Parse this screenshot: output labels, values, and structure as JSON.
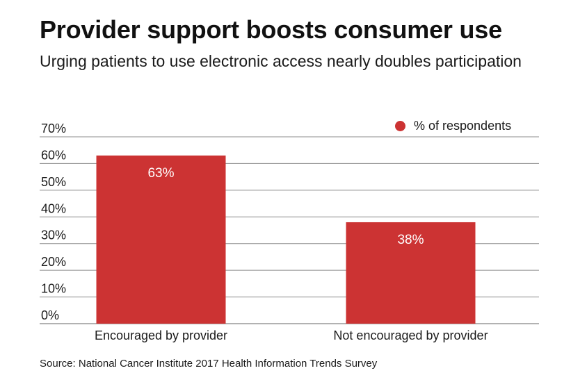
{
  "title": "Provider support boosts consumer use",
  "subtitle": "Urging patients to use electronic access nearly doubles participation",
  "source": "Source: National Cancer Institute 2017 Health Information Trends Survey",
  "colors": {
    "bar": "#cc3333",
    "grid": "#8c8c8c",
    "axis": "#666666",
    "text": "#1a1a1a",
    "bar_label": "#ffffff"
  },
  "chart_data": {
    "type": "bar",
    "categories": [
      "Encouraged by provider",
      "Not encouraged by provider"
    ],
    "series": [
      {
        "name": "% of respondents",
        "values": [
          63,
          38
        ]
      }
    ],
    "data_labels": [
      "63%",
      "38%"
    ],
    "ylim": [
      0,
      70
    ],
    "yticks": [
      0,
      10,
      20,
      30,
      40,
      50,
      60,
      70
    ],
    "ytick_labels": [
      "0%",
      "10%",
      "20%",
      "30%",
      "40%",
      "50%",
      "60%",
      "70%"
    ],
    "grid": true,
    "legend": "top-right"
  }
}
